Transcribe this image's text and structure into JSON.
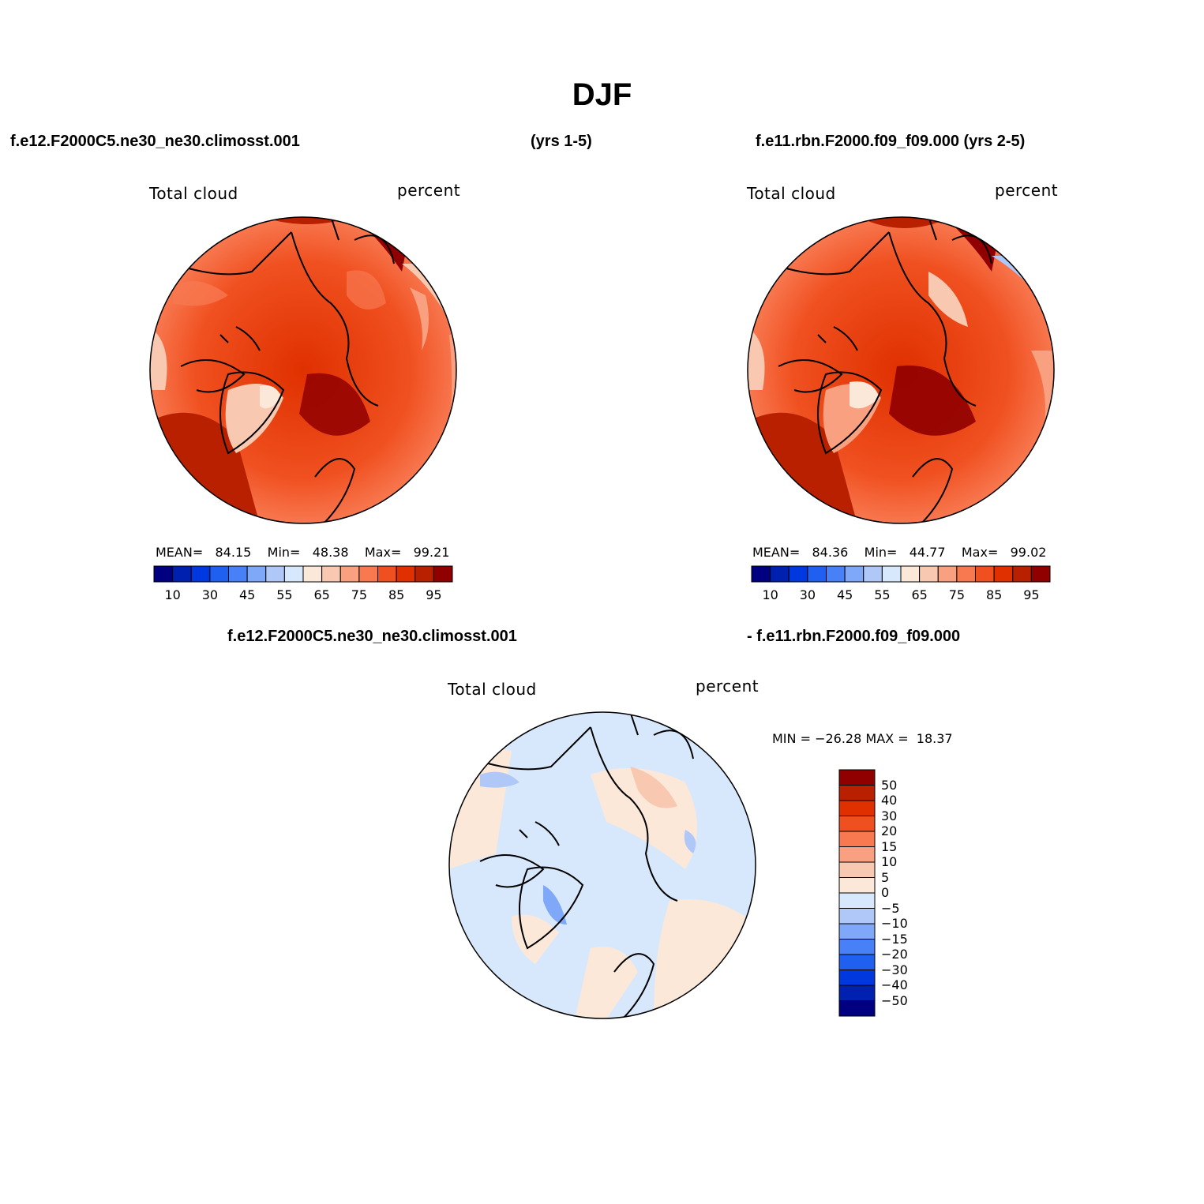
{
  "title": "DJF",
  "header": {
    "case1": "f.e12.F2000C5.ne30_ne30.climosst.001",
    "years1": "(yrs 1-5)",
    "case2": "f.e11.rbn.F2000.f09_f09.000 (yrs 2-5)"
  },
  "diff_header": {
    "case1": "f.e12.F2000C5.ne30_ne30.climosst.001",
    "case2": "- f.e11.rbn.F2000.f09_f09.000"
  },
  "panels": [
    {
      "variable": "Total cloud",
      "units": "percent",
      "stats": {
        "mean_label": "MEAN=",
        "mean": "84.15",
        "min_label": "Min=",
        "min": "48.38",
        "max_label": "Max=",
        "max": "99.21"
      }
    },
    {
      "variable": "Total cloud",
      "units": "percent",
      "stats": {
        "mean_label": "MEAN=",
        "mean": "84.36",
        "min_label": "Min=",
        "min": "44.77",
        "max_label": "Max=",
        "max": "99.02"
      }
    }
  ],
  "diff_panel": {
    "variable": "Total cloud",
    "units": "percent",
    "min_label": "MIN =",
    "min": "−26.28",
    "max_label": "MAX =",
    "max": "18.37"
  },
  "colorbar_abs": {
    "colors": [
      "#000080",
      "#0020b0",
      "#0038e0",
      "#2060f0",
      "#4880f8",
      "#80a8f8",
      "#b0c8f8",
      "#d8e8fc",
      "#fce8d8",
      "#f8c8b0",
      "#f8a080",
      "#f87850",
      "#f05020",
      "#e03000",
      "#b82000",
      "#900000"
    ],
    "tick_labels": [
      "10",
      "30",
      "45",
      "55",
      "65",
      "75",
      "85",
      "95"
    ]
  },
  "colorbar_diff": {
    "colors": [
      "#900000",
      "#b82000",
      "#e03000",
      "#f05020",
      "#f87850",
      "#f8a080",
      "#f8c8b0",
      "#fce8d8",
      "#d8e8fc",
      "#b0c8f8",
      "#80a8f8",
      "#4880f8",
      "#2060f0",
      "#0038e0",
      "#0020b0",
      "#000080"
    ],
    "tick_labels": [
      "50",
      "40",
      "30",
      "20",
      "15",
      "10",
      "5",
      "0",
      "−5",
      "−10",
      "−15",
      "−20",
      "−30",
      "−40",
      "−50"
    ]
  },
  "icons": {
    "map_left": "polar-contour-map",
    "map_right": "polar-contour-map",
    "map_diff": "polar-difference-map"
  }
}
